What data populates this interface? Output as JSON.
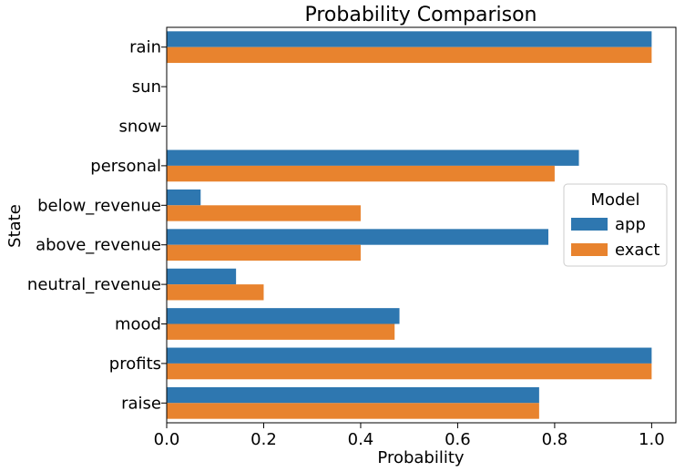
{
  "chart_data": {
    "type": "bar",
    "orientation": "horizontal",
    "title": "Probability Comparison",
    "xlabel": "Probability",
    "ylabel": "State",
    "xlim": [
      0.0,
      1.05
    ],
    "xticks": [
      0.0,
      0.2,
      0.4,
      0.6,
      0.8,
      1.0
    ],
    "xtick_labels": [
      "0.0",
      "0.2",
      "0.4",
      "0.6",
      "0.8",
      "1.0"
    ],
    "grid": false,
    "categories": [
      "rain",
      "sun",
      "snow",
      "personal",
      "below_revenue",
      "above_revenue",
      "neutral_revenue",
      "mood",
      "profits",
      "raise"
    ],
    "series": [
      {
        "name": "app",
        "color": "#2e77b0",
        "values": [
          1.0,
          0.0,
          0.0,
          0.85,
          0.07,
          0.787,
          0.143,
          0.48,
          1.0,
          0.768
        ]
      },
      {
        "name": "exact",
        "color": "#e8832e",
        "values": [
          1.0,
          0.0,
          0.0,
          0.8,
          0.4,
          0.4,
          0.2,
          0.47,
          1.0,
          0.768
        ]
      }
    ],
    "legend": {
      "title": "Model",
      "position": "right"
    }
  }
}
